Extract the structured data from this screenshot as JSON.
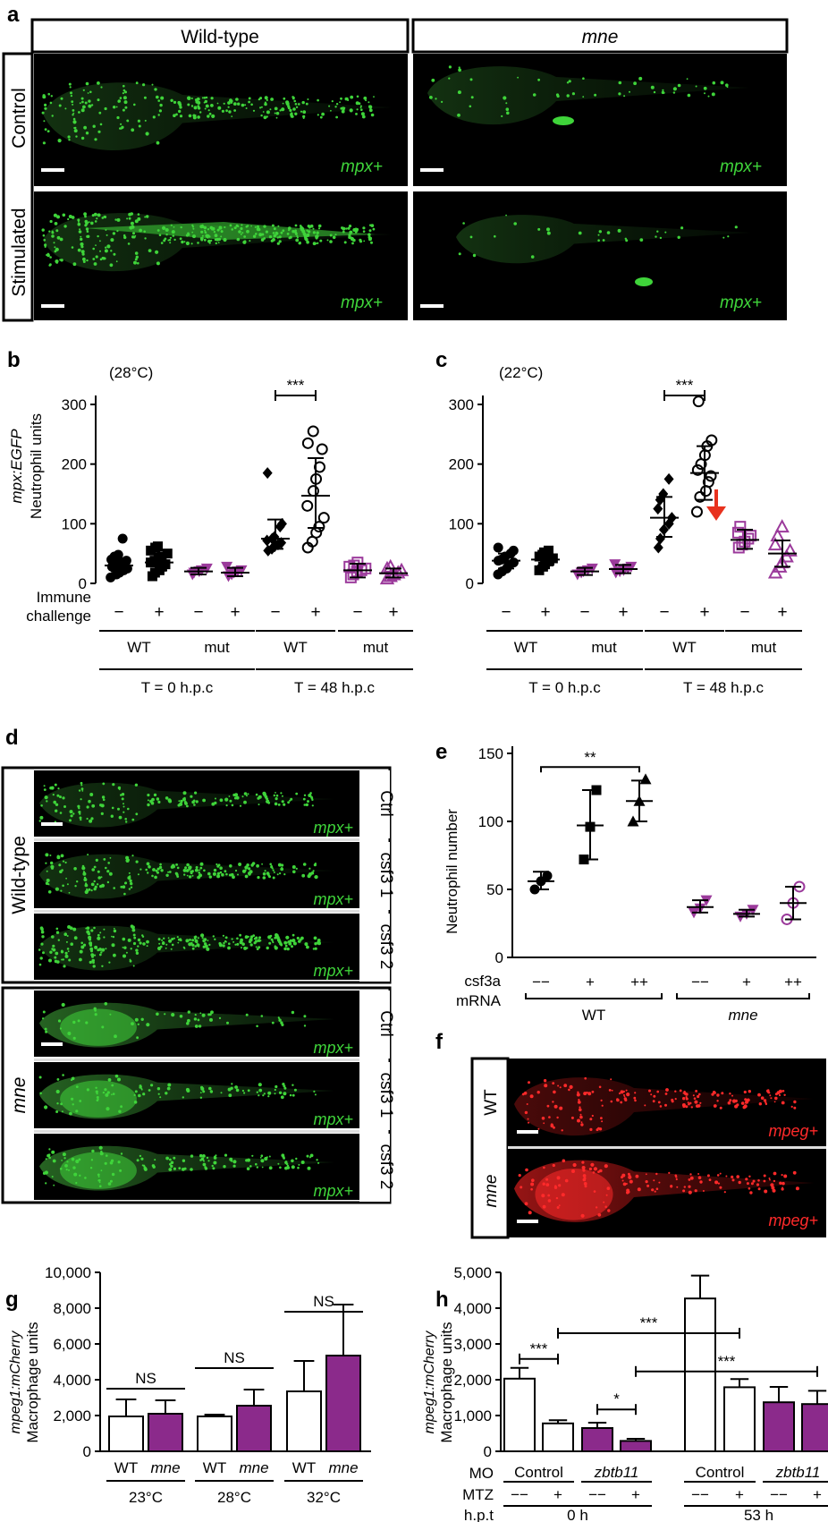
{
  "panel_letters": {
    "a": "a",
    "b": "b",
    "c": "c",
    "d": "d",
    "e": "e",
    "f": "f",
    "g": "g",
    "h": "h"
  },
  "panel_a": {
    "col_headers": [
      "Wild-type",
      "mne"
    ],
    "row_labels": [
      "Control",
      "Stimulated"
    ],
    "marker": "mpx+",
    "fluor_color": "#3fd43a"
  },
  "panel_b": {
    "temp": "(28°C)",
    "ylabel_1": "mpx:EGFP",
    "ylabel_2": "Neutrophil units",
    "yticks": [
      "0",
      "100",
      "200",
      "300"
    ],
    "row_label_1": "Immune",
    "row_label_2": "challenge",
    "signs": [
      "−",
      "+",
      "−",
      "+",
      "−",
      "+",
      "−",
      "+"
    ],
    "groups": [
      "WT",
      "mut",
      "WT",
      "mut"
    ],
    "times": [
      "T = 0 h.p.c",
      "T = 48 h.p.c"
    ],
    "sig": "***"
  },
  "panel_c": {
    "temp": "(22°C)",
    "yticks": [
      "0",
      "100",
      "200",
      "300"
    ],
    "signs": [
      "−",
      "+",
      "−",
      "+",
      "−",
      "+",
      "−",
      "+"
    ],
    "groups": [
      "WT",
      "mut",
      "WT",
      "mut"
    ],
    "times": [
      "T = 0 h.p.c",
      "T = 48 h.p.c"
    ],
    "sig": "***"
  },
  "panel_d": {
    "groups": [
      "Wild-type",
      "mne"
    ],
    "conditions": [
      "Ctrl",
      "csf3 1",
      "csf3 2"
    ],
    "marker": "mpx+"
  },
  "panel_e": {
    "ylabel": "Neutrophil number",
    "yticks": [
      "0",
      "50",
      "100",
      "150"
    ],
    "row_label_1": "csf3a",
    "row_label_2": "mRNA",
    "doses": [
      "−−",
      "+",
      "++",
      "−−",
      "+",
      "++"
    ],
    "groups": [
      "WT",
      "mne"
    ],
    "sig": "**"
  },
  "panel_f": {
    "rows": [
      "WT",
      "mne"
    ],
    "marker": "mpeg+",
    "fluor_color": "#ff2a2a"
  },
  "panel_g": {
    "ylabel_1": "mpeg1:mCherry",
    "ylabel_2": "Macrophage units",
    "yticks": [
      "0",
      "2,000",
      "4,000",
      "6,000",
      "8,000",
      "10,000"
    ],
    "categories": [
      "WT",
      "mne",
      "WT",
      "mne",
      "WT",
      "mne"
    ],
    "temps": [
      "23°C",
      "28°C",
      "32°C"
    ],
    "sig": [
      "NS",
      "NS",
      "NS"
    ]
  },
  "panel_h": {
    "ylabel_1": "mpeg1:mCherry",
    "ylabel_2": "Macrophage units",
    "yticks": [
      "0",
      "1,000",
      "2,000",
      "3,000",
      "4,000",
      "5,000"
    ],
    "row_labels": [
      "MO",
      "MTZ",
      "h.p.t"
    ],
    "mo": [
      "Control",
      "zbtb11",
      "Control",
      "zbtb11"
    ],
    "mtz": [
      "−−",
      "+",
      "−−",
      "+",
      "−−",
      "+",
      "−−",
      "+"
    ],
    "times": [
      "0 h",
      "53 h"
    ],
    "sig": [
      "***",
      "***",
      "*",
      "***"
    ]
  },
  "colors": {
    "wt": "#ffffff",
    "mut": "#8b2a8b",
    "mut_marker": "#9b3a9b",
    "red_arrow": "#e8321e"
  },
  "chart_data": [
    {
      "panel": "b",
      "type": "scatter",
      "title": "",
      "ylabel": "mpx:EGFP Neutrophil units",
      "ylim": [
        0,
        300
      ],
      "categories": [
        "WT − 0h",
        "WT + 0h",
        "mut − 0h",
        "mut + 0h",
        "WT − 48h",
        "WT + 48h",
        "mut − 48h",
        "mut + 48h"
      ],
      "means": [
        30,
        35,
        20,
        18,
        75,
        147,
        22,
        17
      ],
      "sd_low": [
        20,
        22,
        15,
        12,
        58,
        93,
        10,
        10
      ],
      "sd_high": [
        42,
        50,
        26,
        26,
        107,
        210,
        33,
        25
      ],
      "points": [
        [
          10,
          15,
          18,
          22,
          25,
          28,
          30,
          32,
          35,
          38,
          40,
          45,
          48,
          75
        ],
        [
          12,
          18,
          22,
          28,
          32,
          35,
          38,
          42,
          45,
          50,
          55,
          60,
          62
        ],
        [
          15,
          18,
          20,
          22,
          25
        ],
        [
          12,
          15,
          18,
          20,
          22,
          28
        ],
        [
          55,
          58,
          62,
          65,
          68,
          72,
          75,
          78,
          95,
          100,
          185
        ],
        [
          60,
          70,
          85,
          95,
          110,
          130,
          155,
          175,
          195,
          225,
          235,
          255
        ],
        [
          10,
          15,
          20,
          22,
          25,
          28,
          30,
          35
        ],
        [
          8,
          12,
          15,
          18,
          22,
          25,
          28
        ]
      ]
    },
    {
      "panel": "c",
      "type": "scatter",
      "title": "",
      "ylim": [
        0,
        300
      ],
      "categories": [
        "WT − 0h",
        "WT + 0h",
        "mut − 0h",
        "mut + 0h",
        "WT − 48h",
        "WT + 48h",
        "mut − 48h",
        "mut + 48h"
      ],
      "means": [
        38,
        40,
        20,
        24,
        110,
        185,
        73,
        50
      ],
      "sd_low": [
        25,
        30,
        14,
        17,
        78,
        140,
        58,
        28
      ],
      "sd_high": [
        50,
        50,
        26,
        31,
        145,
        230,
        90,
        72
      ],
      "points": [
        [
          15,
          20,
          25,
          30,
          35,
          38,
          40,
          45,
          50,
          55,
          60
        ],
        [
          22,
          28,
          32,
          38,
          42,
          45,
          48,
          52,
          55
        ],
        [
          15,
          18,
          20,
          22,
          25
        ],
        [
          18,
          20,
          22,
          25,
          28,
          32
        ],
        [
          60,
          75,
          90,
          100,
          110,
          125,
          140,
          150,
          175
        ],
        [
          120,
          145,
          155,
          170,
          180,
          190,
          200,
          215,
          230,
          240,
          305
        ],
        [
          60,
          65,
          70,
          75,
          80,
          85,
          95
        ],
        [
          18,
          28,
          35,
          45,
          55,
          65,
          80,
          95
        ]
      ]
    },
    {
      "panel": "e",
      "type": "scatter",
      "title": "",
      "ylabel": "Neutrophil number",
      "ylim": [
        0,
        150
      ],
      "categories": [
        "WT −−",
        "WT +",
        "WT ++",
        "mne −−",
        "mne +",
        "mne ++"
      ],
      "means": [
        56,
        97,
        115,
        37,
        32,
        40
      ],
      "sd_low": [
        50,
        72,
        100,
        33,
        30,
        28
      ],
      "sd_high": [
        63,
        123,
        130,
        42,
        35,
        52
      ],
      "points": [
        [
          50,
          56,
          60
        ],
        [
          72,
          96,
          123
        ],
        [
          100,
          115,
          131
        ],
        [
          33,
          36,
          42
        ],
        [
          30,
          32,
          35
        ],
        [
          28,
          40,
          52
        ]
      ]
    },
    {
      "panel": "g",
      "type": "bar",
      "title": "",
      "ylabel": "mpeg1:mCherry Macrophage units",
      "ylim": [
        0,
        10000
      ],
      "categories": [
        "WT 23°C",
        "mne 23°C",
        "WT 28°C",
        "mne 28°C",
        "WT 32°C",
        "mne 32°C"
      ],
      "values": [
        1950,
        2100,
        1950,
        2550,
        3350,
        5350
      ],
      "err": [
        950,
        750,
        100,
        900,
        1700,
        2850
      ]
    },
    {
      "panel": "h",
      "type": "bar",
      "title": "",
      "ylabel": "mpeg1:mCherry Macrophage units",
      "ylim": [
        0,
        5000
      ],
      "categories": [
        "Control −− 0h",
        "Control + 0h",
        "zbtb11 −− 0h",
        "zbtb11 + 0h",
        "Control −− 53h",
        "Control + 53h",
        "zbtb11 −− 53h",
        "zbtb11 + 53h"
      ],
      "values": [
        2030,
        780,
        650,
        290,
        4270,
        1790,
        1370,
        1320
      ],
      "err": [
        300,
        90,
        150,
        60,
        640,
        230,
        430,
        370
      ]
    }
  ]
}
